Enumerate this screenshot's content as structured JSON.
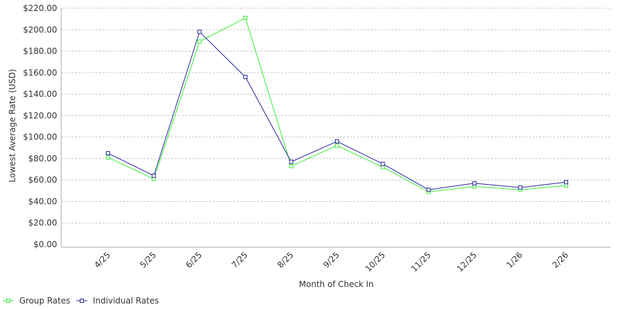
{
  "chart_data": {
    "type": "line",
    "title": "",
    "xlabel": "Month of Check In",
    "ylabel": "Lowest Average Rate (USD)",
    "categories": [
      "4/25",
      "5/25",
      "6/25",
      "7/25",
      "8/25",
      "9/25",
      "10/25",
      "11/25",
      "12/25",
      "1/26",
      "2/26"
    ],
    "y_ticks": [
      "$0.00",
      "$20.00",
      "$40.00",
      "$60.00",
      "$80.00",
      "$100.00",
      "$120.00",
      "$140.00",
      "$160.00",
      "$180.00",
      "$200.00",
      "$220.00"
    ],
    "ylim": [
      0,
      220
    ],
    "grid": true,
    "legend_position": "bottom-left",
    "series": [
      {
        "name": "Group Rates",
        "color": "#33ee33",
        "values": [
          81,
          61,
          189,
          211,
          73,
          92,
          72,
          49,
          54,
          51,
          55
        ]
      },
      {
        "name": "Individual Rates",
        "color": "#222299",
        "values": [
          85,
          64,
          198,
          156,
          77,
          96,
          75,
          51,
          57,
          53,
          58
        ]
      }
    ]
  }
}
